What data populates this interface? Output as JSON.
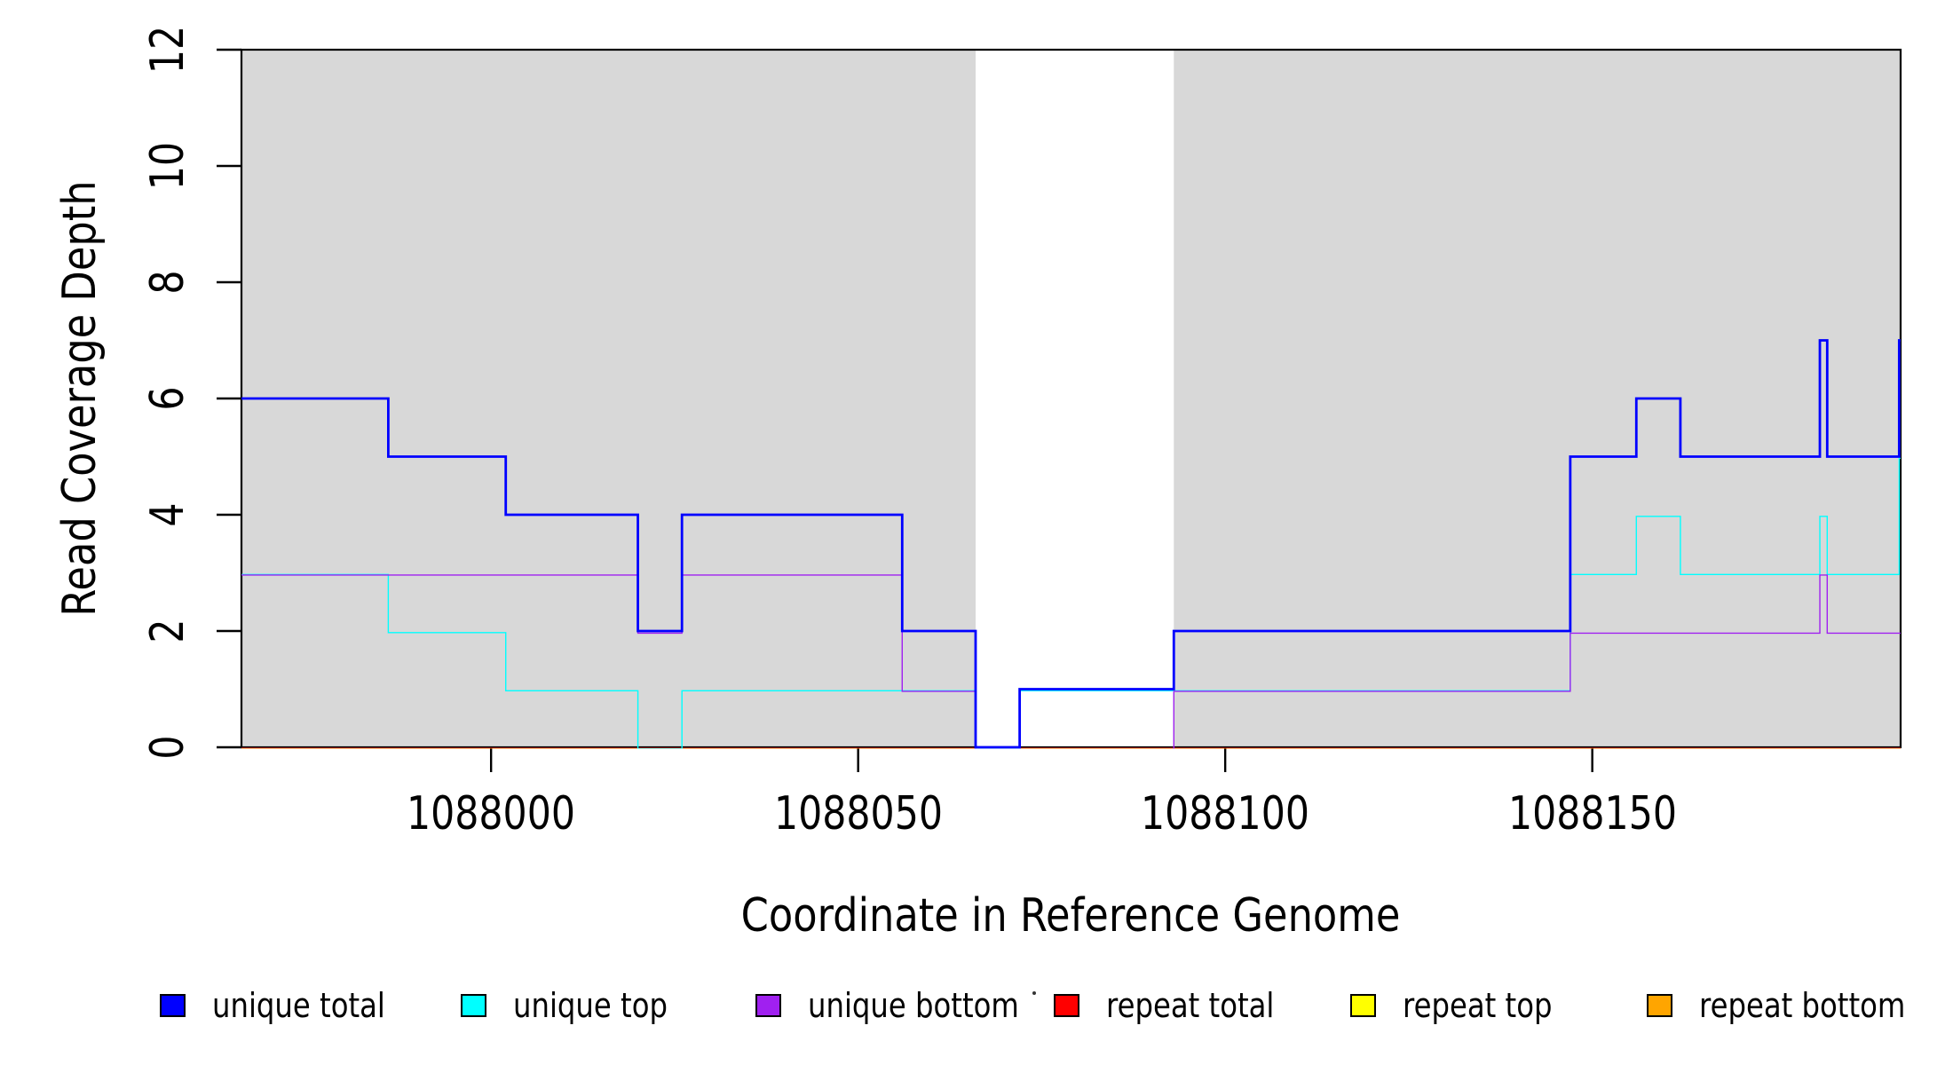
{
  "chart_data": {
    "type": "line",
    "step": true,
    "title": "",
    "xlabel": "Coordinate in Reference Genome",
    "ylabel": "Read Coverage Depth",
    "xlim": [
      1087966,
      1088192
    ],
    "ylim": [
      0,
      12
    ],
    "x_ticks": [
      1088000,
      1088050,
      1088100,
      1088150
    ],
    "x_tick_labels": [
      "1088000",
      "1088050",
      "1088100",
      "1088150"
    ],
    "y_ticks": [
      0,
      2,
      4,
      6,
      8,
      10,
      12
    ],
    "y_tick_labels": [
      "0",
      "2",
      "4",
      "6",
      "8",
      "10",
      "12"
    ],
    "grid": false,
    "legend_position": "bottom",
    "background_color": "#FFFFFF",
    "repeat_region_color": "#D8D8D8",
    "repeat_regions": [
      [
        1087966,
        1088066
      ],
      [
        1088093,
        1088192
      ]
    ],
    "draw_order": [
      "repeat total",
      "repeat top",
      "repeat bottom",
      "unique top",
      "unique bottom",
      "unique total"
    ],
    "series": [
      {
        "name": "unique total",
        "color": "#0000FF",
        "breaks": [
          1087966,
          1087986,
          1088002,
          1088020,
          1088026,
          1088056,
          1088066,
          1088072,
          1088093,
          1088147,
          1088156,
          1088162,
          1088181,
          1088182,
          1088191.8,
          1088192
        ],
        "values": [
          6,
          5,
          4,
          2,
          4,
          2,
          0,
          1,
          2,
          5,
          6,
          5,
          7,
          5,
          7
        ]
      },
      {
        "name": "unique top",
        "color": "#00FFFF",
        "breaks": [
          1087966,
          1087986,
          1088002,
          1088020,
          1088026,
          1088066,
          1088072,
          1088147,
          1088156,
          1088162,
          1088181,
          1088182,
          1088191.8,
          1088192
        ],
        "values": [
          3,
          2,
          1,
          0,
          1,
          0,
          1,
          3,
          4,
          3,
          4,
          3,
          5
        ]
      },
      {
        "name": "unique bottom",
        "color": "#A020F0",
        "breaks": [
          1087966,
          1088020,
          1088026,
          1088056,
          1088066,
          1088093,
          1088147,
          1088181,
          1088182,
          1088192
        ],
        "values": [
          3,
          2,
          3,
          1,
          0,
          1,
          2,
          3,
          2
        ]
      },
      {
        "name": "repeat total",
        "color": "#FF0000",
        "breaks": [
          1087966,
          1088192
        ],
        "values": [
          0
        ]
      },
      {
        "name": "repeat top",
        "color": "#FFFF00",
        "breaks": [
          1087966,
          1088192
        ],
        "values": [
          0
        ]
      },
      {
        "name": "repeat bottom",
        "color": "#FFA500",
        "breaks": [
          1087966,
          1088192
        ],
        "values": [
          0
        ]
      }
    ]
  },
  "legend": {
    "items": [
      {
        "label": "unique total",
        "color": "#0000FF"
      },
      {
        "label": "unique top",
        "color": "#00FFFF"
      },
      {
        "label": "unique bottom",
        "color": "#A020F0"
      },
      {
        "label": "repeat total",
        "color": "#FF0000"
      },
      {
        "label": "repeat top",
        "color": "#FFFF00"
      },
      {
        "label": "repeat bottom",
        "color": "#FFA500"
      }
    ]
  }
}
